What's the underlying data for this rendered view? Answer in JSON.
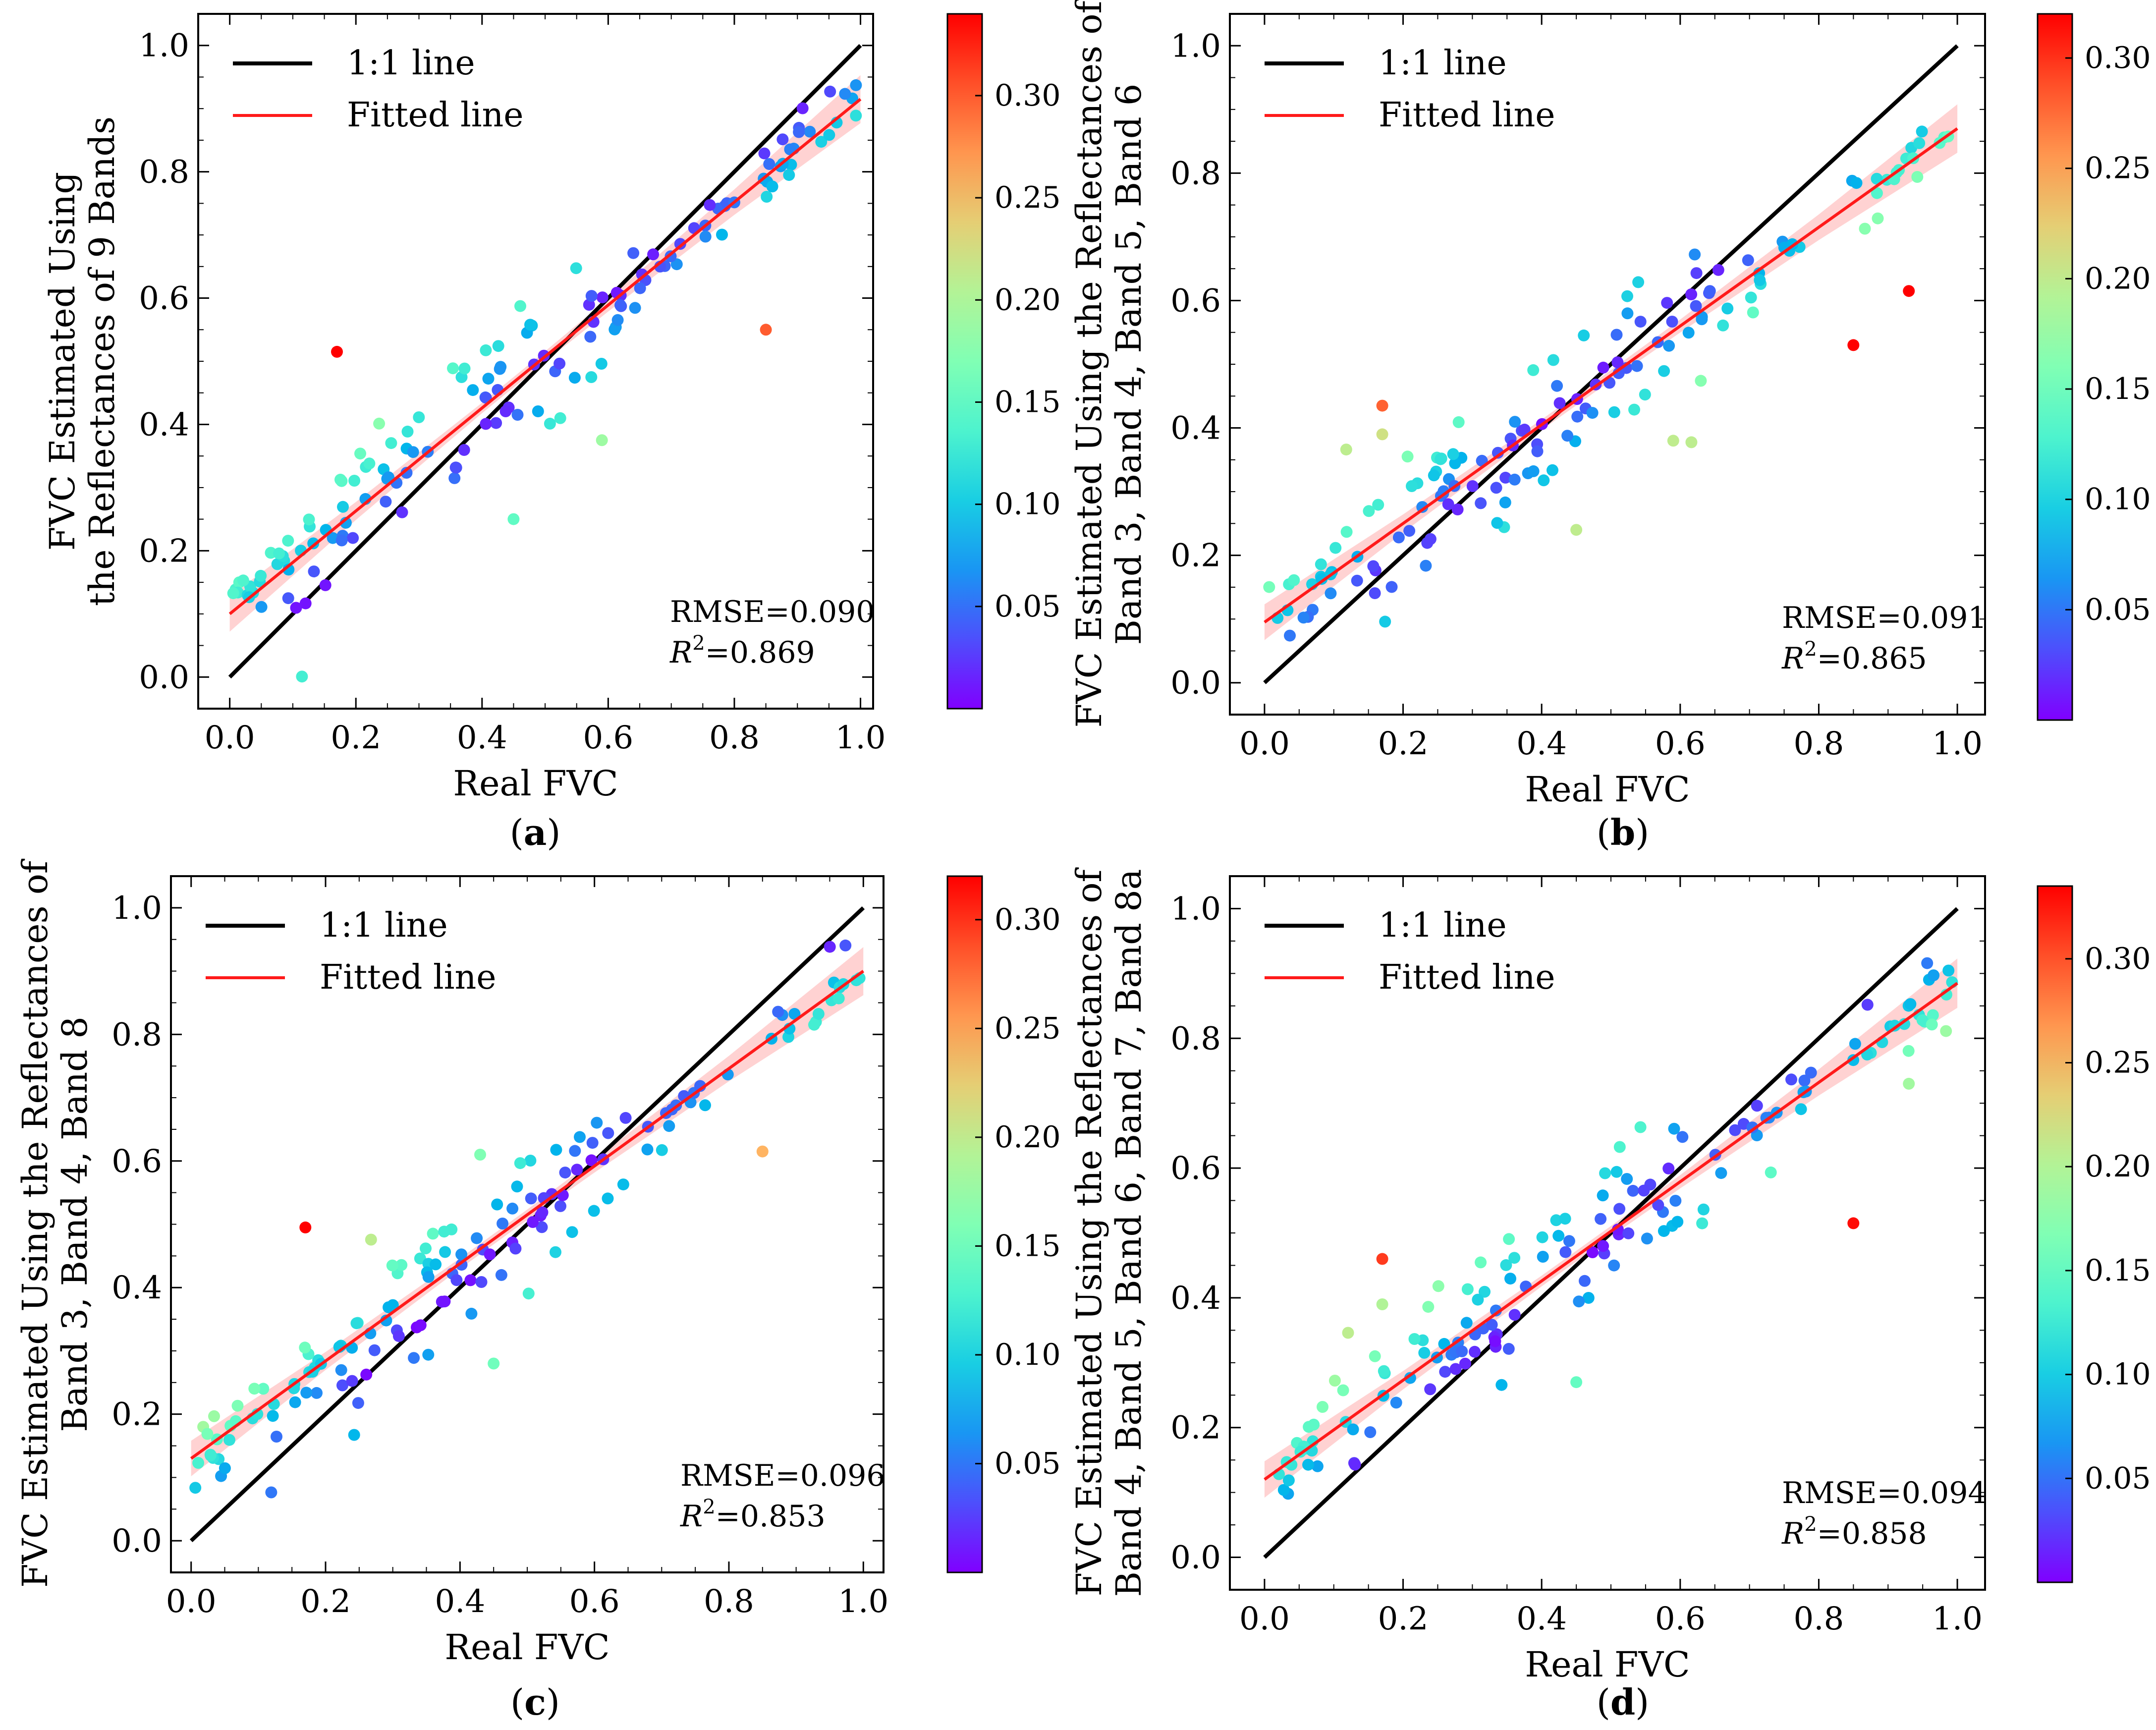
{
  "figure": {
    "subplot_letters": [
      "a",
      "b",
      "c",
      "d"
    ]
  },
  "colors": {
    "one_to_one_line": "#000000",
    "fitted_line": "#ff1a1a",
    "confidence_band": "#ff9c9c",
    "colormap": "rainbow"
  },
  "chart_data": [
    {
      "type": "scatter",
      "panel": "a",
      "xlabel": "Real FVC",
      "ylabel_lines": [
        "FVC Estimated Using",
        "the Reflectances of 9 Bands"
      ],
      "xlim": [
        -0.05,
        1.02
      ],
      "ylim": [
        -0.05,
        1.05
      ],
      "xticks": [
        "0.0",
        "0.2",
        "0.4",
        "0.6",
        "0.8",
        "1.0"
      ],
      "yticks": [
        "0.0",
        "0.2",
        "0.4",
        "0.6",
        "0.8",
        "1.0"
      ],
      "legend": [
        "1:1 line",
        "Fitted line"
      ],
      "rmse_text": "RMSE=0.090",
      "r2_text": "0.869",
      "fitted_line": {
        "x": [
          0.0,
          1.0
        ],
        "y": [
          0.1,
          0.915
        ]
      },
      "colorbar": {
        "range": [
          0.0,
          0.34
        ],
        "ticks": [
          "0.05",
          "0.10",
          "0.15",
          "0.20",
          "0.25",
          "0.30"
        ]
      },
      "outliers": [
        {
          "x": 0.17,
          "y": 0.515,
          "c": 0.34
        },
        {
          "x": 0.85,
          "y": 0.55,
          "c": 0.3
        },
        {
          "x": 0.59,
          "y": 0.375,
          "c": 0.19
        },
        {
          "x": 0.45,
          "y": 0.25,
          "c": 0.15
        }
      ]
    },
    {
      "type": "scatter",
      "panel": "b",
      "xlabel": "Real FVC",
      "ylabel_lines": [
        "FVC Estimated Using the Reflectances of",
        "Band 3, Band 4, Band 5, Band 6"
      ],
      "xlim": [
        -0.05,
        1.04
      ],
      "ylim": [
        -0.05,
        1.05
      ],
      "xticks": [
        "0.0",
        "0.2",
        "0.4",
        "0.6",
        "0.8",
        "1.0"
      ],
      "yticks": [
        "0.0",
        "0.2",
        "0.4",
        "0.6",
        "0.8",
        "1.0"
      ],
      "legend": [
        "1:1 line",
        "Fitted line"
      ],
      "rmse_text": "RMSE=0.091",
      "r2_text": "0.865",
      "fitted_line": {
        "x": [
          0.0,
          1.0
        ],
        "y": [
          0.095,
          0.87
        ]
      },
      "colorbar": {
        "range": [
          0.0,
          0.32
        ],
        "ticks": [
          "0.05",
          "0.10",
          "0.15",
          "0.20",
          "0.25",
          "0.30"
        ]
      },
      "outliers": [
        {
          "x": 0.93,
          "y": 0.615,
          "c": 0.32
        },
        {
          "x": 0.85,
          "y": 0.53,
          "c": 0.32
        },
        {
          "x": 0.17,
          "y": 0.435,
          "c": 0.28
        },
        {
          "x": 0.17,
          "y": 0.39,
          "c": 0.21
        },
        {
          "x": 0.45,
          "y": 0.24,
          "c": 0.2
        },
        {
          "x": 0.59,
          "y": 0.38,
          "c": 0.2
        }
      ]
    },
    {
      "type": "scatter",
      "panel": "c",
      "xlabel": "Real FVC",
      "ylabel_lines": [
        "FVC Estimated Using the Reflectances of",
        "Band 3, Band 4, Band 8"
      ],
      "xlim": [
        -0.03,
        1.03
      ],
      "ylim": [
        -0.05,
        1.05
      ],
      "xticks": [
        "0.0",
        "0.2",
        "0.4",
        "0.6",
        "0.8",
        "1.0"
      ],
      "yticks": [
        "0.0",
        "0.2",
        "0.4",
        "0.6",
        "0.8",
        "1.0"
      ],
      "legend": [
        "1:1 line",
        "Fitted line"
      ],
      "rmse_text": "RMSE=0.096",
      "r2_text": "0.853",
      "fitted_line": {
        "x": [
          0.0,
          1.0
        ],
        "y": [
          0.13,
          0.9
        ]
      },
      "colorbar": {
        "range": [
          0.0,
          0.32
        ],
        "ticks": [
          "0.05",
          "0.10",
          "0.15",
          "0.20",
          "0.25",
          "0.30"
        ]
      },
      "outliers": [
        {
          "x": 0.17,
          "y": 0.495,
          "c": 0.32
        },
        {
          "x": 0.85,
          "y": 0.615,
          "c": 0.24
        },
        {
          "x": 0.43,
          "y": 0.61,
          "c": 0.16
        },
        {
          "x": 0.45,
          "y": 0.28,
          "c": 0.15
        }
      ]
    },
    {
      "type": "scatter",
      "panel": "d",
      "xlabel": "Real FVC",
      "ylabel_lines": [
        "FVC Estimated Using the Reflectances of",
        "Band 4, Band 5, Band 6, Band 7, Band 8a"
      ],
      "xlim": [
        -0.05,
        1.04
      ],
      "ylim": [
        -0.05,
        1.05
      ],
      "xticks": [
        "0.0",
        "0.2",
        "0.4",
        "0.6",
        "0.8",
        "1.0"
      ],
      "yticks": [
        "0.0",
        "0.2",
        "0.4",
        "0.6",
        "0.8",
        "1.0"
      ],
      "legend": [
        "1:1 line",
        "Fitted line"
      ],
      "rmse_text": "RMSE=0.094",
      "r2_text": "0.858",
      "fitted_line": {
        "x": [
          0.0,
          1.0
        ],
        "y": [
          0.12,
          0.885
        ]
      },
      "colorbar": {
        "range": [
          0.0,
          0.335
        ],
        "ticks": [
          "0.05",
          "0.10",
          "0.15",
          "0.20",
          "0.25",
          "0.30"
        ]
      },
      "outliers": [
        {
          "x": 0.85,
          "y": 0.515,
          "c": 0.33
        },
        {
          "x": 0.17,
          "y": 0.46,
          "c": 0.31
        },
        {
          "x": 0.93,
          "y": 0.73,
          "c": 0.19
        },
        {
          "x": 0.17,
          "y": 0.39,
          "c": 0.2
        },
        {
          "x": 0.45,
          "y": 0.27,
          "c": 0.15
        }
      ]
    }
  ]
}
